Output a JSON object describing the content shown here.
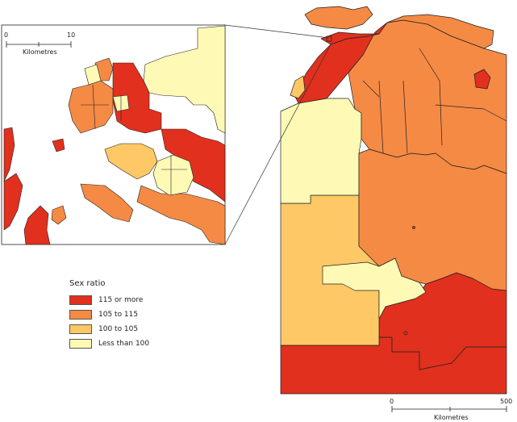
{
  "legend": {
    "title": "Sex ratio",
    "items": [
      {
        "label": "115 or more",
        "color": "#e1301e"
      },
      {
        "label": "105 to 115",
        "color": "#f58a45"
      },
      {
        "label": "100 to 105",
        "color": "#fdc865"
      },
      {
        "label": "Less than 100",
        "color": "#fefab5"
      }
    ]
  },
  "inset_scale": {
    "min": "0",
    "max": "10",
    "unit": "Kilometres"
  },
  "main_scale": {
    "min": "0",
    "max": "500",
    "unit": "Kilometres"
  }
}
